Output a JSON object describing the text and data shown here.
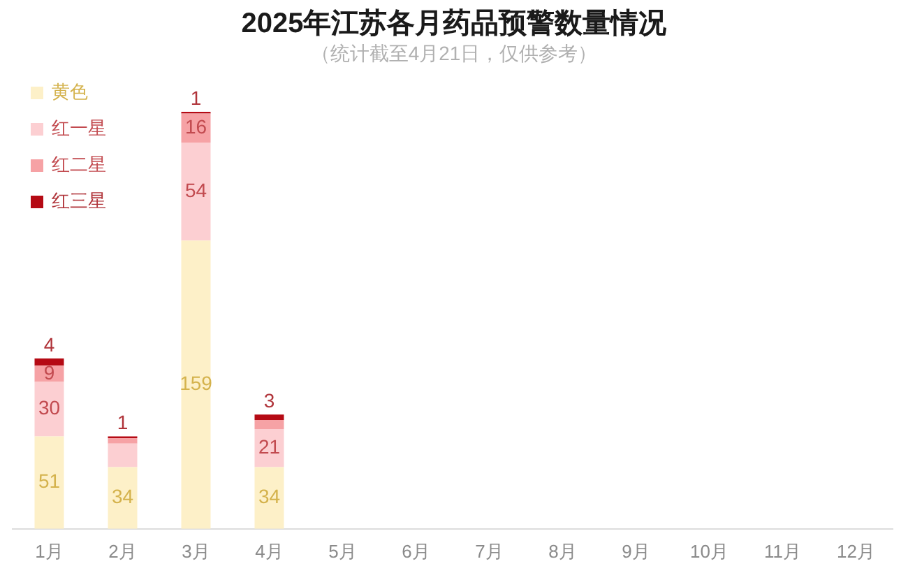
{
  "chart_data": {
    "type": "bar",
    "title": "2025年江苏各月药品预警数量情况",
    "subtitle": "（统计截至4月21日，仅供参考）",
    "categories": [
      "1月",
      "2月",
      "3月",
      "4月",
      "5月",
      "6月",
      "7月",
      "8月",
      "9月",
      "10月",
      "11月",
      "12月"
    ],
    "stacked": true,
    "legend": "top left",
    "tick_labels": "x",
    "series": [
      {
        "name": "黄色",
        "color": "#fdf0c8",
        "values": [
          51,
          34,
          159,
          34,
          null,
          null,
          null,
          null,
          null,
          null,
          null,
          null
        ],
        "value_labels": [
          "51",
          "34",
          "159",
          "34",
          null,
          null,
          null,
          null,
          null,
          null,
          null,
          null
        ]
      },
      {
        "name": "红一星",
        "color": "#fccfd2",
        "values": [
          30,
          13,
          54,
          21,
          null,
          null,
          null,
          null,
          null,
          null,
          null,
          null
        ],
        "value_labels": [
          "30",
          null,
          "54",
          "21",
          null,
          null,
          null,
          null,
          null,
          null,
          null,
          null
        ]
      },
      {
        "name": "红二星",
        "color": "#f6a2a5",
        "values": [
          9,
          3,
          16,
          5,
          null,
          null,
          null,
          null,
          null,
          null,
          null,
          null
        ],
        "value_labels": [
          "9",
          null,
          "16",
          null,
          null,
          null,
          null,
          null,
          null,
          null,
          null,
          null
        ]
      },
      {
        "name": "红三星",
        "color": "#b50a14",
        "values": [
          4,
          1,
          1,
          3,
          null,
          null,
          null,
          null,
          null,
          null,
          null,
          null
        ],
        "value_labels": [
          "4",
          "1",
          "1",
          "3",
          null,
          null,
          null,
          null,
          null,
          null,
          null,
          null
        ]
      }
    ]
  }
}
